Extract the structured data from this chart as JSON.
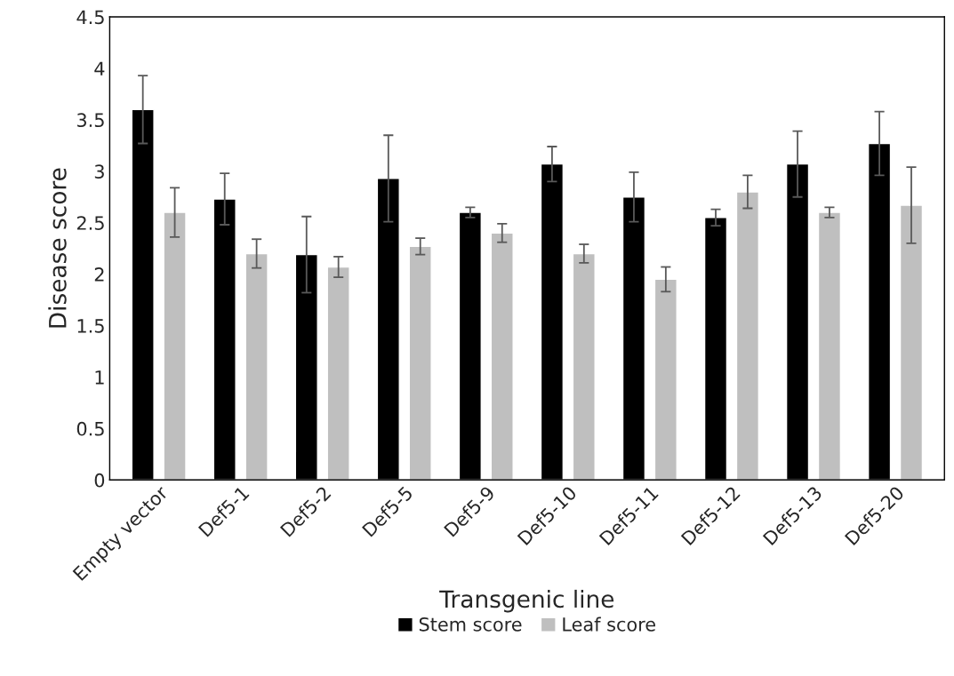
{
  "chart_data": {
    "type": "bar",
    "xlabel": "Transgenic line",
    "ylabel": "Disease score",
    "categories": [
      "Empty vector",
      "Def5-1",
      "Def5-2",
      "Def5-5",
      "Def5-9",
      "Def5-10",
      "Def5-11",
      "Def5-12",
      "Def5-13",
      "Def5-20"
    ],
    "series": [
      {
        "name": "Stem score",
        "color": "#000000",
        "values": [
          3.6,
          2.73,
          2.19,
          2.93,
          2.6,
          3.07,
          2.75,
          2.55,
          3.07,
          3.27
        ],
        "errors": [
          0.33,
          0.25,
          0.37,
          0.42,
          0.05,
          0.17,
          0.24,
          0.08,
          0.32,
          0.31
        ]
      },
      {
        "name": "Leaf score",
        "color": "#bfbfbf",
        "values": [
          2.6,
          2.2,
          2.07,
          2.27,
          2.4,
          2.2,
          1.95,
          2.8,
          2.6,
          2.67
        ],
        "errors": [
          0.24,
          0.14,
          0.1,
          0.08,
          0.09,
          0.09,
          0.12,
          0.16,
          0.05,
          0.37
        ]
      }
    ],
    "ylim": [
      0,
      4.5
    ],
    "yticks": [
      0,
      0.5,
      1,
      1.5,
      2,
      2.5,
      3,
      3.5,
      4,
      4.5
    ],
    "grid": false,
    "legend": "bottom"
  }
}
